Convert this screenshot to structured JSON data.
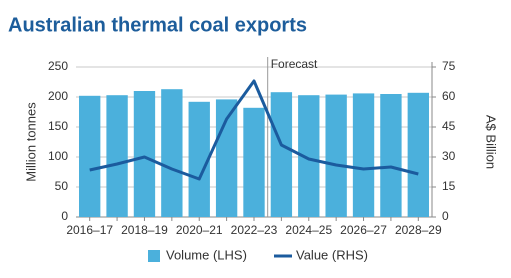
{
  "chart_data": {
    "type": "bar",
    "title": "Australian thermal coal exports",
    "categories": [
      "2016–17",
      null,
      "2018–19",
      null,
      "2020–21",
      null,
      "2022–23",
      null,
      "2024–25",
      null,
      "2026–27",
      null,
      "2028–29"
    ],
    "series": [
      {
        "name": "Volume (LHS)",
        "type": "bar",
        "color": "#4bb0dc",
        "values": [
          202,
          203,
          210,
          213,
          192,
          196,
          182,
          208,
          203,
          204,
          206,
          205,
          207
        ]
      },
      {
        "name": "Value (RHS)",
        "type": "line",
        "axis": "y2",
        "color": "#1b5b9e",
        "values": [
          23.5,
          26.5,
          30,
          24,
          19,
          49,
          68,
          36,
          29,
          26,
          24,
          25,
          21.5
        ]
      }
    ],
    "ylabel": "Million tonnes",
    "y2label": "A$ Billion",
    "ylim": [
      0,
      250
    ],
    "yticks": [
      0,
      50,
      100,
      150,
      200,
      250
    ],
    "y2lim": [
      0,
      75
    ],
    "y2ticks": [
      0,
      15,
      30,
      45,
      60,
      75
    ],
    "annotation": "Forecast",
    "grid": true
  }
}
